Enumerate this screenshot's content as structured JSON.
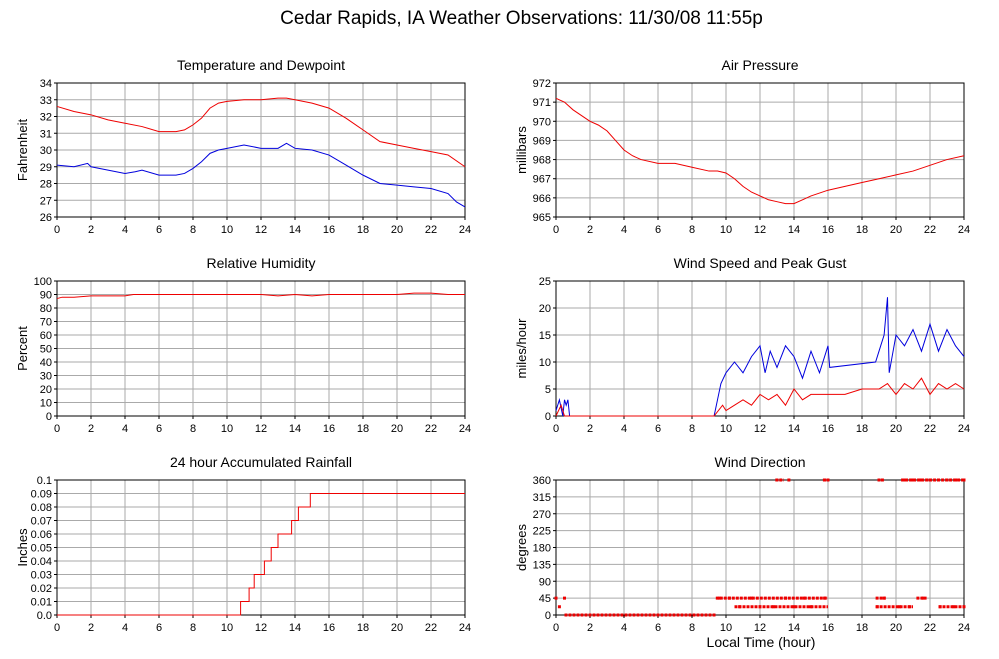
{
  "page": {
    "title": "Cedar Rapids, IA Weather Observations: 11/30/08 11:55p",
    "x_axis_label": "Local Time (hour)"
  },
  "colors": {
    "red": "#ee0000",
    "blue": "#0000dd",
    "grid": "#aaaaaa",
    "axis": "#000000"
  },
  "chart_data": [
    {
      "type": "line",
      "title": "Temperature and Dewpoint",
      "ylabel": "Fahrenheit",
      "xlim": [
        0,
        24
      ],
      "ylim": [
        26,
        34
      ],
      "xticks": [
        0,
        2,
        4,
        6,
        8,
        10,
        12,
        14,
        16,
        18,
        20,
        22,
        24
      ],
      "yticks": [
        26,
        27,
        28,
        29,
        30,
        31,
        32,
        33,
        34
      ],
      "grid": true,
      "series": [
        {
          "color": "red",
          "x": [
            0,
            1,
            2,
            3,
            4,
            5,
            6,
            7,
            7.5,
            8,
            8.5,
            9,
            9.5,
            10,
            11,
            12,
            13,
            13.5,
            14,
            15,
            16,
            17,
            18,
            19,
            20,
            21,
            22,
            23,
            24
          ],
          "y": [
            32.6,
            32.3,
            32.1,
            31.8,
            31.6,
            31.4,
            31.1,
            31.1,
            31.2,
            31.5,
            31.9,
            32.5,
            32.8,
            32.9,
            33.0,
            33.0,
            33.1,
            33.1,
            33.0,
            32.8,
            32.5,
            31.9,
            31.2,
            30.5,
            30.3,
            30.1,
            29.9,
            29.7,
            29.0
          ]
        },
        {
          "color": "blue",
          "x": [
            0,
            1,
            1.8,
            2,
            3,
            4,
            4.6,
            5,
            6,
            7,
            7.5,
            8,
            8.5,
            9,
            9.5,
            10,
            11,
            12,
            13,
            13.5,
            14,
            15,
            16,
            17,
            18,
            19,
            20,
            21,
            22,
            23,
            23.5,
            24
          ],
          "y": [
            29.1,
            29.0,
            29.2,
            29.0,
            28.8,
            28.6,
            28.7,
            28.8,
            28.5,
            28.5,
            28.6,
            28.9,
            29.3,
            29.8,
            30.0,
            30.1,
            30.3,
            30.1,
            30.1,
            30.4,
            30.1,
            30.0,
            29.7,
            29.1,
            28.5,
            28.0,
            27.9,
            27.8,
            27.7,
            27.4,
            26.9,
            26.6
          ]
        }
      ]
    },
    {
      "type": "line",
      "title": "Air Pressure",
      "ylabel": "millibars",
      "xlim": [
        0,
        24
      ],
      "ylim": [
        965,
        972
      ],
      "xticks": [
        0,
        2,
        4,
        6,
        8,
        10,
        12,
        14,
        16,
        18,
        20,
        22,
        24
      ],
      "yticks": [
        965,
        966,
        967,
        968,
        969,
        970,
        971,
        972
      ],
      "grid": true,
      "series": [
        {
          "color": "red",
          "x": [
            0,
            0.5,
            1,
            1.5,
            2,
            2.5,
            3,
            3.5,
            4,
            4.5,
            5,
            6,
            7,
            8,
            9,
            9.5,
            10,
            10.5,
            11,
            11.5,
            12,
            12.5,
            13,
            13.5,
            14,
            14.5,
            15,
            16,
            17,
            18,
            19,
            20,
            21,
            22,
            23,
            24
          ],
          "y": [
            971.2,
            971.0,
            970.6,
            970.3,
            970.0,
            969.8,
            969.5,
            969.0,
            968.5,
            968.2,
            968.0,
            967.8,
            967.8,
            967.6,
            967.4,
            967.4,
            967.3,
            967.0,
            966.6,
            966.3,
            966.1,
            965.9,
            965.8,
            965.7,
            965.7,
            965.9,
            966.1,
            966.4,
            966.6,
            966.8,
            967.0,
            967.2,
            967.4,
            967.7,
            968.0,
            968.2
          ]
        }
      ]
    },
    {
      "type": "line",
      "title": "Relative Humidity",
      "ylabel": "Percent",
      "xlim": [
        0,
        24
      ],
      "ylim": [
        0,
        100
      ],
      "xticks": [
        0,
        2,
        4,
        6,
        8,
        10,
        12,
        14,
        16,
        18,
        20,
        22,
        24
      ],
      "yticks": [
        0,
        10,
        20,
        30,
        40,
        50,
        60,
        70,
        80,
        90,
        100
      ],
      "grid": true,
      "series": [
        {
          "color": "red",
          "x": [
            0,
            0.3,
            1,
            2,
            4,
            4.5,
            8,
            12,
            13,
            14,
            15,
            16,
            20,
            21,
            22,
            23,
            24
          ],
          "y": [
            87,
            88,
            88,
            89,
            89,
            90,
            90,
            90,
            89,
            90,
            89,
            90,
            90,
            91,
            91,
            90,
            90
          ]
        }
      ]
    },
    {
      "type": "line",
      "title": "Wind Speed and Peak Gust",
      "ylabel": "miles/hour",
      "xlim": [
        0,
        24
      ],
      "ylim": [
        0,
        25
      ],
      "xticks": [
        0,
        2,
        4,
        6,
        8,
        10,
        12,
        14,
        16,
        18,
        20,
        22,
        24
      ],
      "yticks": [
        0,
        5,
        10,
        15,
        20,
        25
      ],
      "grid": true,
      "series": [
        {
          "color": "blue",
          "x": [
            0,
            0.2,
            0.4,
            0.5,
            0.6,
            0.7,
            0.8,
            1,
            9.3,
            9.5,
            9.7,
            10,
            10.5,
            11,
            11.5,
            12,
            12.3,
            12.6,
            13,
            13.5,
            14,
            14.5,
            15,
            15.5,
            16,
            16.1,
            18.8,
            19,
            19.3,
            19.5,
            19.6,
            20,
            20.5,
            21,
            21.5,
            22,
            22.5,
            23,
            23.5,
            24
          ],
          "y": [
            1,
            3,
            0,
            3,
            2,
            3,
            0,
            0,
            0,
            3,
            6,
            8,
            10,
            8,
            11,
            13,
            8,
            12,
            9,
            13,
            11,
            7,
            12,
            8,
            13,
            9,
            10,
            12,
            15,
            22,
            8,
            15,
            13,
            16,
            12,
            17,
            12,
            16,
            13,
            11
          ]
        },
        {
          "color": "red",
          "x": [
            0,
            0.3,
            0.5,
            1,
            9.3,
            9.8,
            10,
            10.5,
            11,
            11.5,
            12,
            12.5,
            13,
            13.5,
            14,
            14.5,
            15,
            16,
            17,
            18,
            19,
            19.5,
            20,
            20.5,
            21,
            21.5,
            22,
            22.5,
            23,
            23.5,
            24
          ],
          "y": [
            0,
            2,
            0,
            0,
            0,
            2,
            1,
            2,
            3,
            2,
            4,
            3,
            4,
            2,
            5,
            3,
            4,
            4,
            4,
            5,
            5,
            6,
            4,
            6,
            5,
            7,
            4,
            6,
            5,
            6,
            5
          ]
        }
      ]
    },
    {
      "type": "line",
      "title": "24 hour Accumulated Rainfall",
      "ylabel": "Inches",
      "xlim": [
        0,
        24
      ],
      "ylim": [
        0,
        0.1
      ],
      "xticks": [
        0,
        2,
        4,
        6,
        8,
        10,
        12,
        14,
        16,
        18,
        20,
        22,
        24
      ],
      "yticks": [
        0.0,
        0.01,
        0.02,
        0.03,
        0.04,
        0.05,
        0.06,
        0.07,
        0.08,
        0.09,
        0.1
      ],
      "ytick_labels": [
        "0.0",
        "0.01",
        "0.02",
        "0.03",
        "0.04",
        "0.05",
        "0.06",
        "0.07",
        "0.08",
        "0.09",
        "0.1"
      ],
      "grid": true,
      "series": [
        {
          "color": "red",
          "step": true,
          "x": [
            0,
            10.8,
            11.3,
            11.6,
            11.9,
            12.2,
            12.6,
            13.0,
            13.4,
            13.8,
            14.2,
            14.5,
            14.9,
            24
          ],
          "y": [
            0,
            0.01,
            0.02,
            0.03,
            0.03,
            0.04,
            0.05,
            0.06,
            0.06,
            0.07,
            0.08,
            0.08,
            0.09,
            0.09
          ]
        }
      ]
    },
    {
      "type": "scatter",
      "title": "Wind Direction",
      "ylabel": "degrees",
      "xlim": [
        0,
        24
      ],
      "ylim": [
        0,
        360
      ],
      "xticks": [
        0,
        2,
        4,
        6,
        8,
        10,
        12,
        14,
        16,
        18,
        20,
        22,
        24
      ],
      "yticks": [
        0,
        45,
        90,
        135,
        180,
        225,
        270,
        315,
        360
      ],
      "grid": true,
      "series": [
        {
          "color": "red",
          "x": [
            0,
            0.2,
            0.5,
            9.6,
            10.2,
            10.8,
            11.5,
            12.0,
            12.8,
            13.5,
            14.0,
            14.6,
            15.0,
            15.8,
            18.9,
            19.3,
            20.2,
            20.8,
            21.6,
            22.6,
            23.4,
            24
          ],
          "y": [
            45,
            22,
            45,
            45,
            45,
            22,
            45,
            22,
            22,
            45,
            22,
            45,
            22,
            45,
            22,
            45,
            22,
            22,
            45,
            22,
            22,
            22
          ]
        },
        {
          "color": "red",
          "x": [
            13.0,
            13.7,
            15.8,
            16.0,
            19.0,
            19.2,
            20.5,
            21.0,
            21.5,
            22.0,
            22.5,
            23.0,
            23.5,
            24
          ],
          "y": [
            360,
            360,
            360,
            360,
            360,
            360,
            360,
            360,
            360,
            360,
            360,
            360,
            360,
            360
          ]
        }
      ],
      "bands": [
        {
          "x": [
            0.5,
            9.4
          ],
          "y": 0
        },
        {
          "x": [
            9.4,
            16.0
          ],
          "y": 45
        },
        {
          "x": [
            10.5,
            16.0
          ],
          "y": 22
        },
        {
          "x": [
            18.8,
            21.0
          ],
          "y": 22
        },
        {
          "x": [
            22.5,
            24.0
          ],
          "y": 22
        },
        {
          "x": [
            20.3,
            24.0
          ],
          "y": 360
        },
        {
          "x": [
            12.9,
            13.4
          ],
          "y": 360
        },
        {
          "x": [
            15.7,
            16.0
          ],
          "y": 360
        },
        {
          "x": [
            18.8,
            19.4
          ],
          "y": 45
        },
        {
          "x": [
            21.2,
            21.8
          ],
          "y": 45
        }
      ]
    }
  ]
}
